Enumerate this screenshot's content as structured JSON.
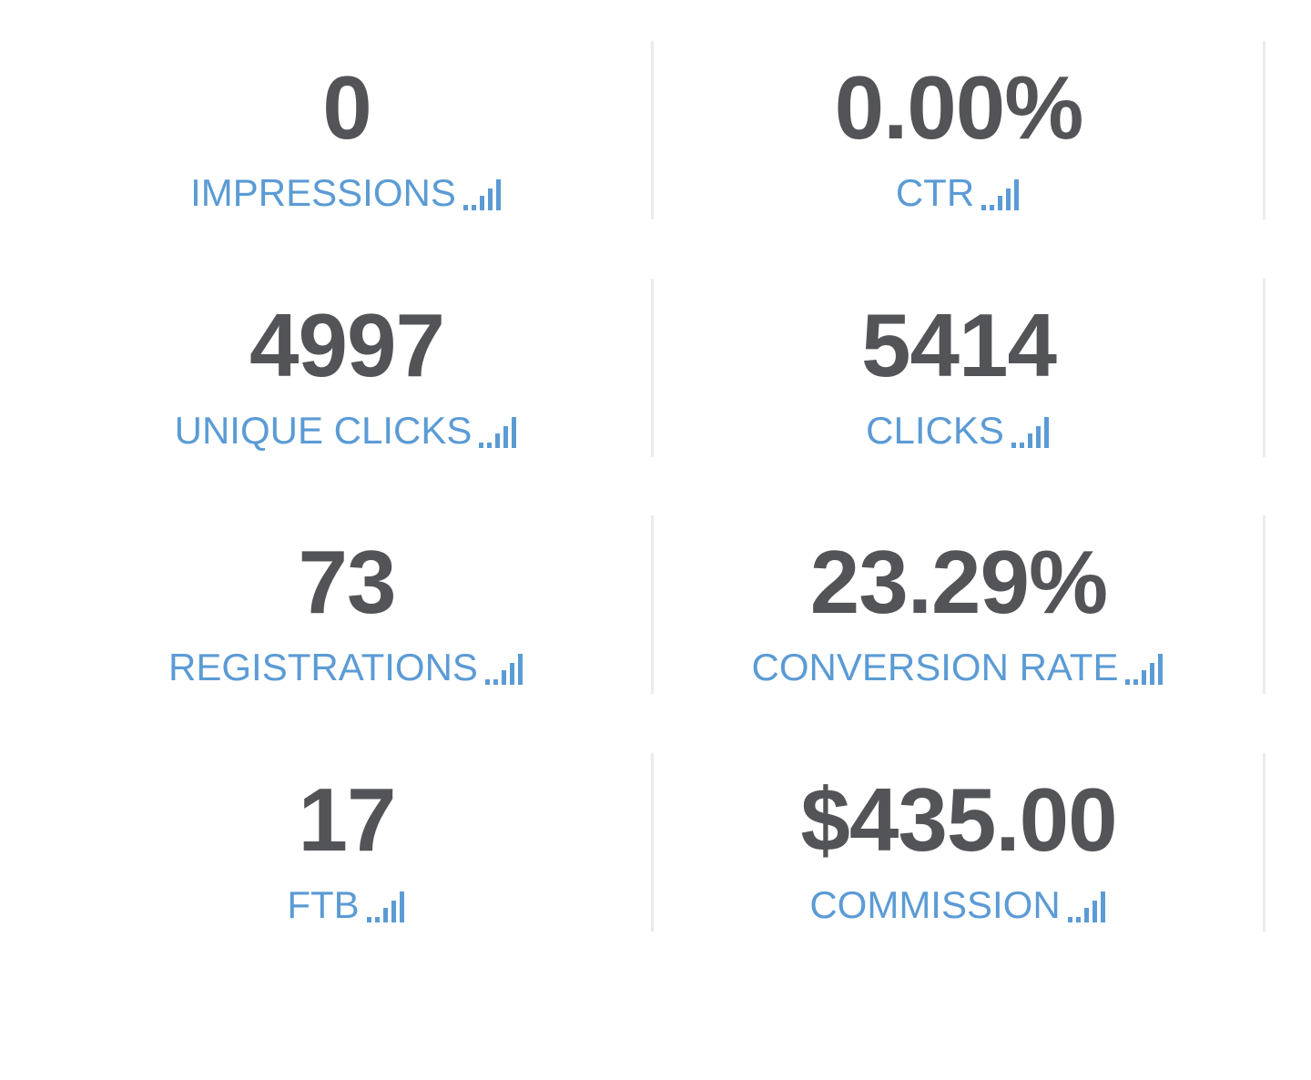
{
  "stats": [
    {
      "value": "0",
      "label": "IMPRESSIONS"
    },
    {
      "value": "0.00%",
      "label": "CTR"
    },
    {
      "value": "4997",
      "label": "UNIQUE CLICKS"
    },
    {
      "value": "5414",
      "label": "CLICKS"
    },
    {
      "value": "73",
      "label": "REGISTRATIONS"
    },
    {
      "value": "23.29%",
      "label": "CONVERSION RATE"
    },
    {
      "value": "17",
      "label": "FTB"
    },
    {
      "value": "$435.00",
      "label": "COMMISSION"
    }
  ]
}
